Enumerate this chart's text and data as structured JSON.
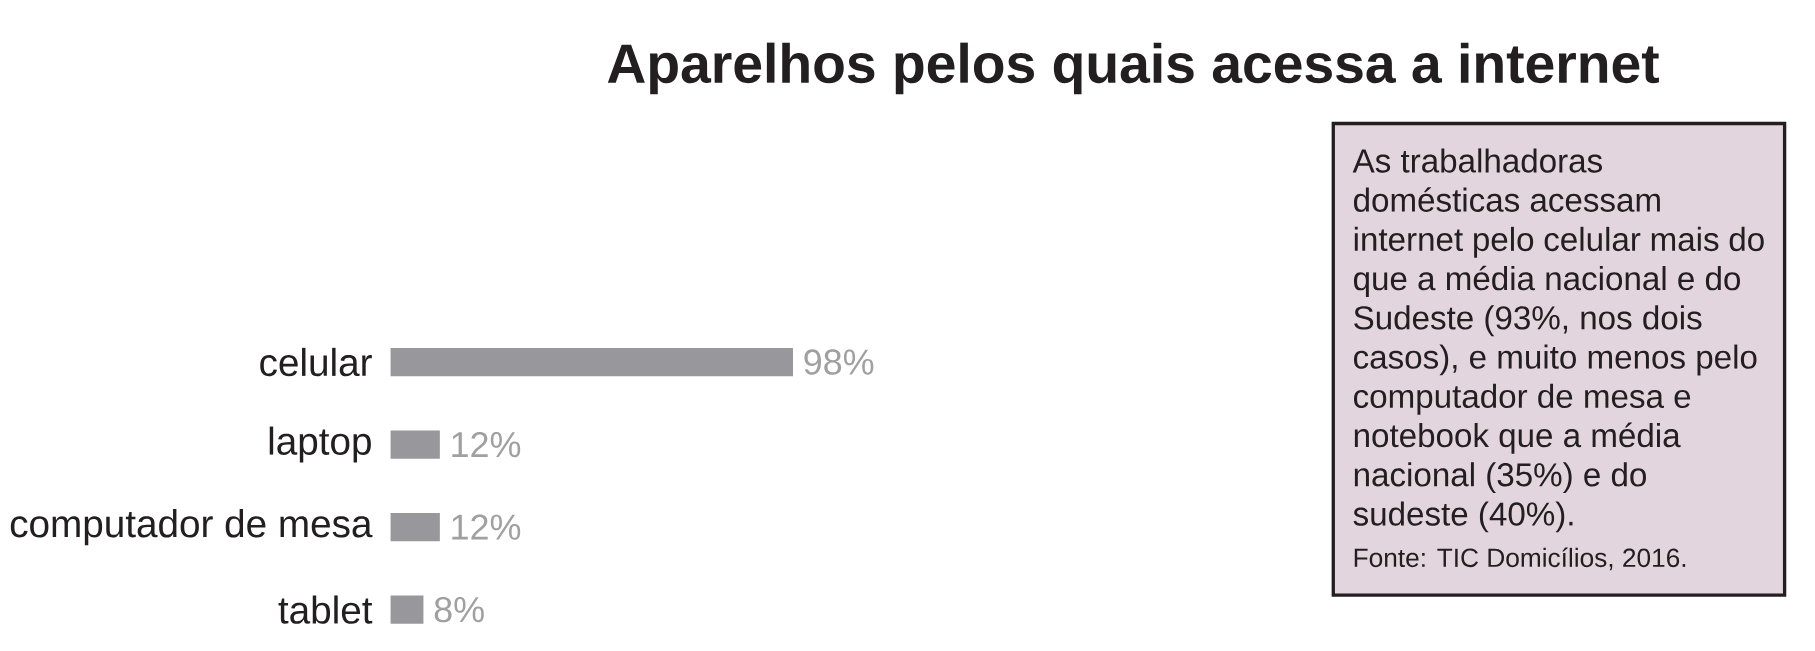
{
  "chart_data": {
    "type": "bar",
    "orientation": "horizontal",
    "title": "Aparelhos pelos quais acessa a internet",
    "categories": [
      "celular",
      "laptop",
      "computador de mesa",
      "tablet"
    ],
    "values": [
      98,
      12,
      12,
      8
    ],
    "value_labels": [
      "98%",
      "12%",
      "12%",
      "8%"
    ],
    "color": "#98989c",
    "annotations": [
      "As trabalhadoras domésticas acessam internet pelo celular mais do que a média nacional e do Sudeste (93%, nos dois casos), e muito menos pelo computador de mesa e notebook que a média nacional (35%) e do sudeste (40%).",
      "Fonte: TIC Domicílios, 2016."
    ]
  }
}
